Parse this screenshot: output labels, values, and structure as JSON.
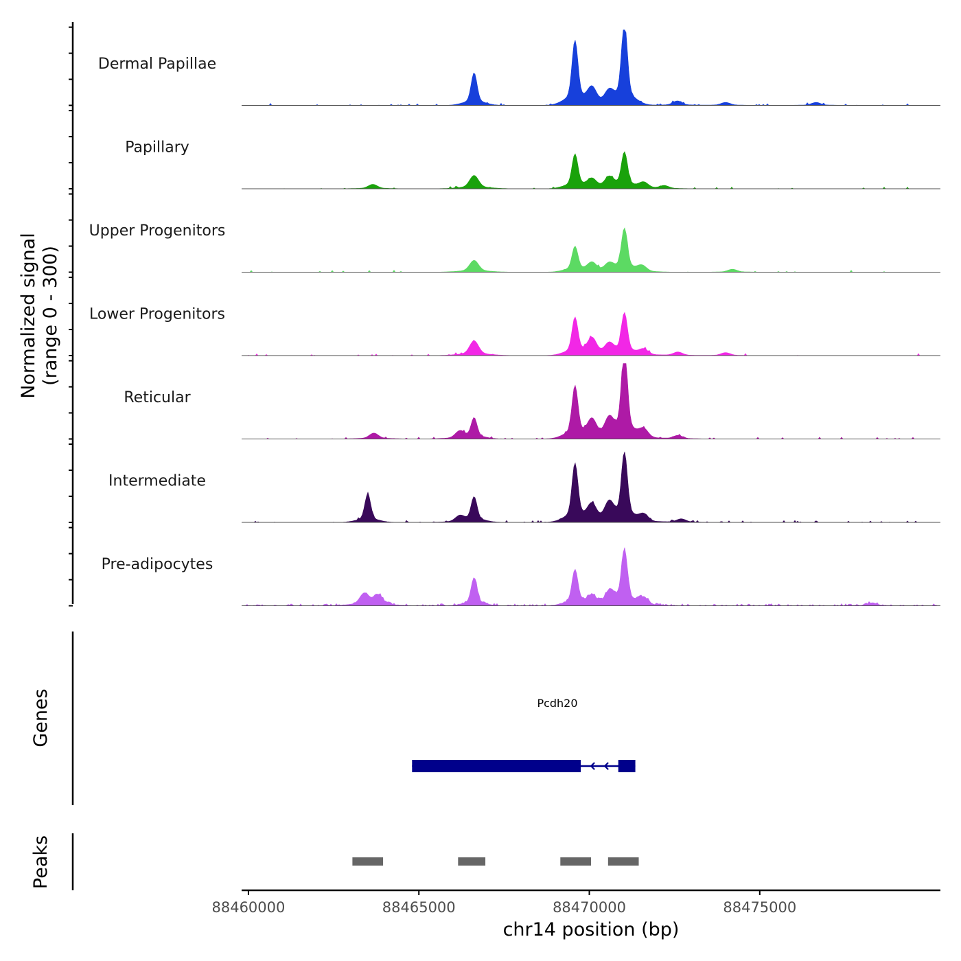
{
  "chart_data": {
    "type": "area",
    "title": "",
    "chromosome": "chr14",
    "xlabel": "chr14 position (bp)",
    "ylabel_line1": "Normalized signal",
    "ylabel_line2": "(range 0 - 300)",
    "genes_label": "Genes",
    "peaks_label": "Peaks",
    "xlim": [
      88459800,
      88480300
    ],
    "ylim": [
      0,
      300
    ],
    "x_ticks": [
      88460000,
      88465000,
      88470000,
      88475000
    ],
    "x_tick_labels": [
      "88460000",
      "88465000",
      "88470000",
      "88475000"
    ],
    "series": [
      {
        "name": "Dermal Papillae",
        "color": "#1740DB",
        "peaks": [
          [
            88466620,
            110
          ],
          [
            88469580,
            215
          ],
          [
            88470080,
            55
          ],
          [
            88470580,
            40
          ],
          [
            88471030,
            275
          ],
          [
            88472580,
            15
          ],
          [
            88474000,
            10
          ],
          [
            88476650,
            10
          ]
        ],
        "noise": [
          0.02,
          0.1
        ]
      },
      {
        "name": "Papillary",
        "color": "#1AA20B",
        "peaks": [
          [
            88463650,
            15
          ],
          [
            88466620,
            45
          ],
          [
            88469580,
            115
          ],
          [
            88470080,
            30
          ],
          [
            88470580,
            35
          ],
          [
            88471030,
            120
          ],
          [
            88471600,
            20
          ],
          [
            88472200,
            10
          ]
        ],
        "noise": [
          0.01,
          0.05
        ]
      },
      {
        "name": "Upper Progenitors",
        "color": "#5CDA63",
        "peaks": [
          [
            88466620,
            40
          ],
          [
            88469580,
            85
          ],
          [
            88470080,
            30
          ],
          [
            88470580,
            25
          ],
          [
            88471030,
            145
          ],
          [
            88471550,
            20
          ],
          [
            88474200,
            10
          ]
        ],
        "noise": [
          0.01,
          0.04
        ]
      },
      {
        "name": "Lower Progenitors",
        "color": "#F227E6",
        "peaks": [
          [
            88466620,
            50
          ],
          [
            88469580,
            125
          ],
          [
            88470080,
            55
          ],
          [
            88470580,
            35
          ],
          [
            88471030,
            140
          ],
          [
            88471600,
            20
          ],
          [
            88472600,
            12
          ],
          [
            88474000,
            10
          ]
        ],
        "noise": [
          0.01,
          0.06
        ]
      },
      {
        "name": "Reticular",
        "color": "#AE1AA6",
        "peaks": [
          [
            88463680,
            20
          ],
          [
            88466200,
            25
          ],
          [
            88466620,
            70
          ],
          [
            88469580,
            175
          ],
          [
            88470080,
            60
          ],
          [
            88470580,
            60
          ],
          [
            88471030,
            300
          ],
          [
            88471600,
            30
          ],
          [
            88472600,
            12
          ]
        ],
        "noise": [
          0.03,
          0.12
        ]
      },
      {
        "name": "Intermediate",
        "color": "#39095A",
        "peaks": [
          [
            88463500,
            95
          ],
          [
            88466200,
            20
          ],
          [
            88466620,
            85
          ],
          [
            88469580,
            195
          ],
          [
            88470080,
            55
          ],
          [
            88470580,
            60
          ],
          [
            88471030,
            230
          ],
          [
            88471600,
            25
          ],
          [
            88472700,
            12
          ]
        ],
        "noise": [
          0.05,
          0.15
        ]
      },
      {
        "name": "Pre-adipocytes",
        "color": "#C060F1",
        "peaks": [
          [
            88463400,
            40
          ],
          [
            88463800,
            35
          ],
          [
            88466620,
            95
          ],
          [
            88469580,
            120
          ],
          [
            88470080,
            30
          ],
          [
            88470600,
            45
          ],
          [
            88471030,
            185
          ],
          [
            88471600,
            25
          ],
          [
            88478300,
            10
          ]
        ],
        "noise": [
          0.15,
          0.55
        ]
      }
    ],
    "gene": {
      "name": "Pcdh20",
      "start": 88464800,
      "end": 88471350,
      "strand": "-",
      "color": "#00008B",
      "exons": [
        [
          88464800,
          88469750
        ],
        [
          88470850,
          88471350
        ]
      ]
    },
    "peaks_track": {
      "color": "#666666",
      "regions": [
        [
          88463050,
          88463950
        ],
        [
          88466150,
          88466950
        ],
        [
          88469150,
          88470050
        ],
        [
          88470550,
          88471450
        ]
      ]
    }
  }
}
